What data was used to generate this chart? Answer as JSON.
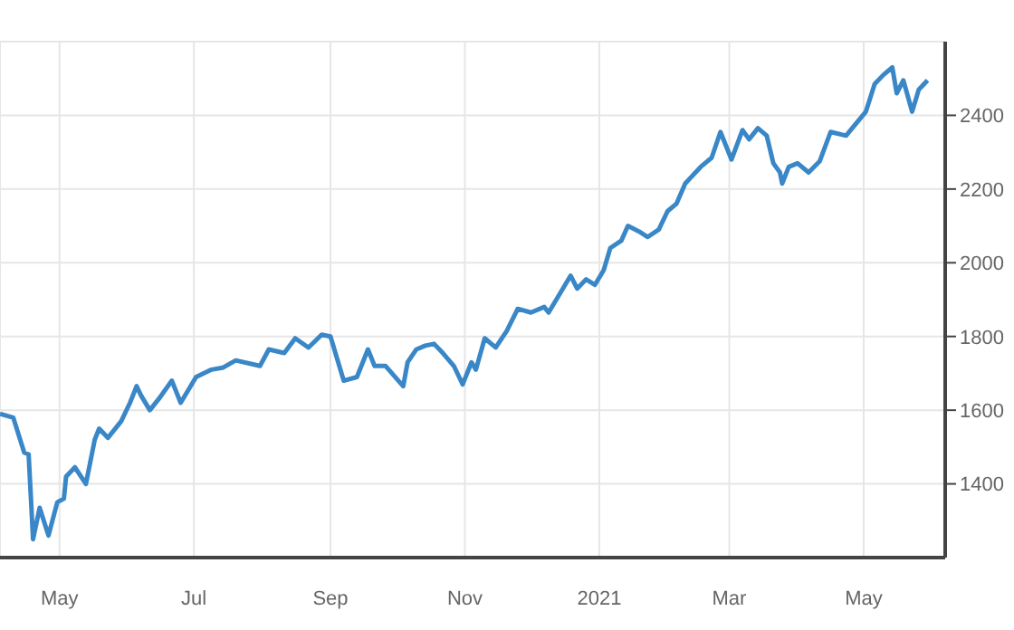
{
  "chart_data": {
    "type": "line",
    "x": [
      "2020-04-04",
      "2020-04-10",
      "2020-04-15",
      "2020-04-17",
      "2020-04-19",
      "2020-04-22",
      "2020-04-26",
      "2020-04-30",
      "2020-05-03",
      "2020-05-04",
      "2020-05-08",
      "2020-05-13",
      "2020-05-17",
      "2020-05-19",
      "2020-05-23",
      "2020-05-29",
      "2020-06-02",
      "2020-06-05",
      "2020-06-07",
      "2020-06-11",
      "2020-06-15",
      "2020-06-21",
      "2020-06-25",
      "2020-07-02",
      "2020-07-09",
      "2020-07-14",
      "2020-07-20",
      "2020-07-31",
      "2020-08-04",
      "2020-08-11",
      "2020-08-16",
      "2020-08-22",
      "2020-08-28",
      "2020-09-01",
      "2020-09-07",
      "2020-09-13",
      "2020-09-18",
      "2020-09-21",
      "2020-09-26",
      "2020-10-04",
      "2020-10-06",
      "2020-10-10",
      "2020-10-14",
      "2020-10-18",
      "2020-10-22",
      "2020-10-27",
      "2020-10-31",
      "2020-11-04",
      "2020-11-06",
      "2020-11-10",
      "2020-11-15",
      "2020-11-20",
      "2020-11-25",
      "2020-12-01",
      "2020-12-07",
      "2020-12-09",
      "2020-12-13",
      "2020-12-19",
      "2020-12-22",
      "2020-12-26",
      "2020-12-30",
      "2021-01-03",
      "2021-01-06",
      "2021-01-11",
      "2021-01-14",
      "2021-01-19",
      "2021-01-23",
      "2021-01-28",
      "2021-02-01",
      "2021-02-05",
      "2021-02-09",
      "2021-02-16",
      "2021-02-21",
      "2021-02-25",
      "2021-03-02",
      "2021-03-07",
      "2021-03-10",
      "2021-03-14",
      "2021-03-18",
      "2021-03-21",
      "2021-03-24",
      "2021-03-25",
      "2021-03-28",
      "2021-04-01",
      "2021-04-06",
      "2021-04-11",
      "2021-04-16",
      "2021-04-23",
      "2021-05-02",
      "2021-05-06",
      "2021-05-10",
      "2021-05-14",
      "2021-05-16",
      "2021-05-19",
      "2021-05-23",
      "2021-05-26",
      "2021-05-30"
    ],
    "series": [
      {
        "color": "#3a87c8",
        "values": [
          1590,
          1580,
          1485,
          1480,
          1250,
          1335,
          1260,
          1350,
          1360,
          1420,
          1445,
          1400,
          1520,
          1550,
          1525,
          1570,
          1620,
          1665,
          1640,
          1600,
          1630,
          1680,
          1620,
          1690,
          1710,
          1715,
          1735,
          1720,
          1765,
          1755,
          1795,
          1770,
          1805,
          1800,
          1680,
          1690,
          1765,
          1720,
          1720,
          1665,
          1730,
          1765,
          1775,
          1780,
          1755,
          1720,
          1670,
          1730,
          1710,
          1795,
          1770,
          1815,
          1875,
          1865,
          1880,
          1865,
          1905,
          1965,
          1930,
          1955,
          1940,
          1980,
          2040,
          2060,
          2100,
          2085,
          2070,
          2090,
          2140,
          2160,
          2215,
          2260,
          2285,
          2355,
          2280,
          2360,
          2335,
          2365,
          2345,
          2270,
          2245,
          2215,
          2260,
          2270,
          2245,
          2275,
          2355,
          2345,
          2410,
          2485,
          2510,
          2530,
          2460,
          2495,
          2410,
          2470,
          2495
        ]
      }
    ],
    "xlim": [
      "2020-04-04",
      "2021-06-07"
    ],
    "xticks": [
      {
        "value": "2020-05-01",
        "label": "May"
      },
      {
        "value": "2020-07-01",
        "label": "Jul"
      },
      {
        "value": "2020-09-01",
        "label": "Sep"
      },
      {
        "value": "2020-11-01",
        "label": "Nov"
      },
      {
        "value": "2021-01-01",
        "label": "2021"
      },
      {
        "value": "2021-03-01",
        "label": "Mar"
      },
      {
        "value": "2021-05-01",
        "label": "May"
      }
    ],
    "ylim": [
      1200,
      2600
    ],
    "yticks": [
      1400,
      1600,
      1800,
      2000,
      2200,
      2400
    ],
    "grid": true,
    "legend": false,
    "marker": "none",
    "line_style": "solid"
  }
}
